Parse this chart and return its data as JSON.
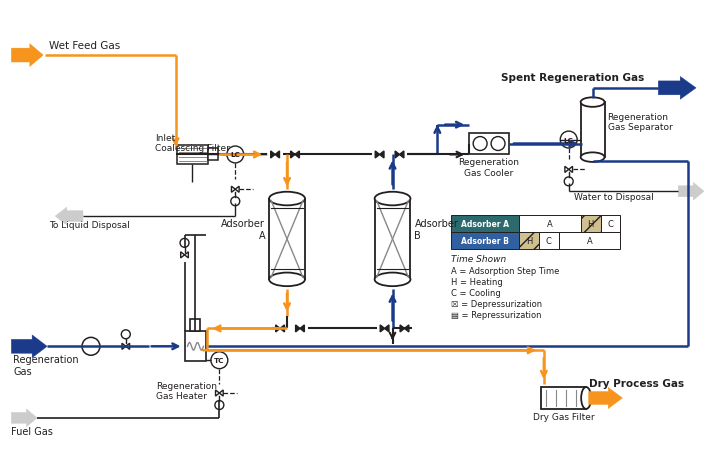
{
  "orange": "#F7941D",
  "blue": "#1B3A8A",
  "black": "#231F20",
  "gray": "#888888",
  "teal": "#2D6A6E",
  "steel_blue": "#3060A0",
  "white": "#FFFFFF",
  "bg": "#FFFFFF",
  "labels": {
    "wet_feed_gas": "Wet Feed Gas",
    "inlet_filter": "Inlet\nCoalescing Filter",
    "to_liquid_disposal": "To Liquid Disposal",
    "adsorber_a": "Adsorber\nA",
    "adsorber_b": "Adsorber\nB",
    "regen_cooler": "Regeneration\nGas Cooler",
    "regen_separator": "Regeneration\nGas Separator",
    "spent_regen": "Spent Regeneration Gas",
    "water_disposal": "Water to Disposal",
    "regen_gas": "Regeneration\nGas",
    "regen_heater": "Regeneration\nGas Heater",
    "fuel_gas": "Fuel Gas",
    "dry_filter": "Dry Gas Filter",
    "dry_process": "Dry Process Gas",
    "time_shown": "Time Shown",
    "leg_a": "A = Adsorption Step Time",
    "leg_h": "H = Heating",
    "leg_c": "C = Cooling",
    "leg_dep": "☒ = Depressurization",
    "leg_rep": "▤ = Repressurization",
    "lc": "LC",
    "tc": "TC",
    "adsorber_a_label": "Adsorber A",
    "adsorber_b_label": "Adsorber B",
    "a_label": "A",
    "h_label": "H",
    "c_label": "C"
  }
}
